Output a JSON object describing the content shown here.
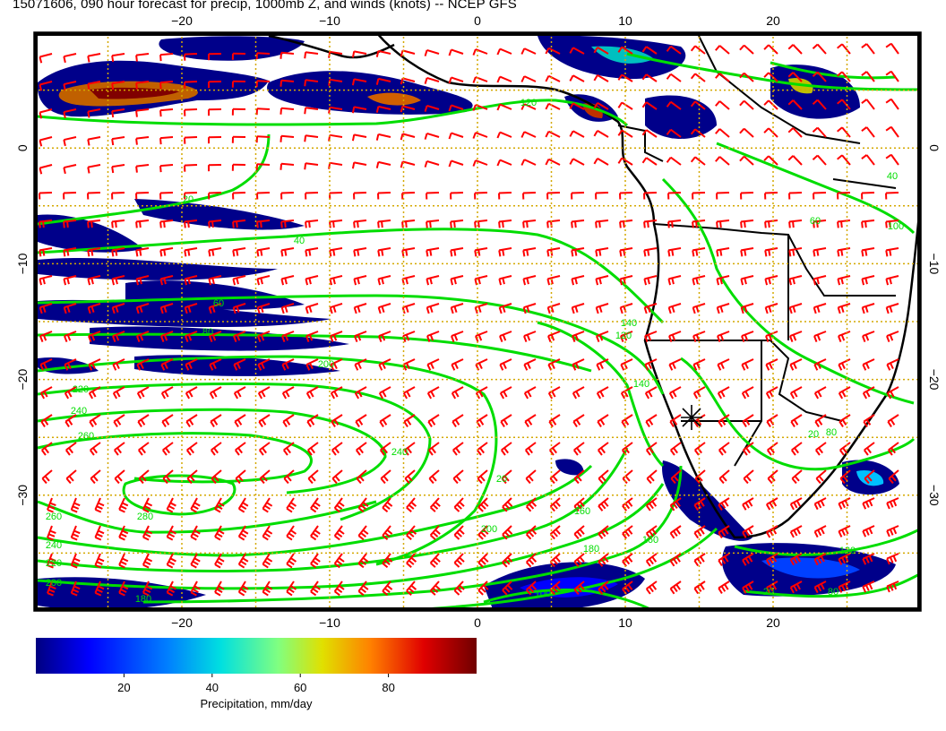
{
  "title": "15071606, 090 hour forecast for precip, 1000mb Z, and winds (knots) -- NCEP GFS",
  "map": {
    "lon_range": [
      -30,
      30
    ],
    "lat_range": [
      -40,
      10
    ],
    "lon_ticks": [
      -20,
      -10,
      0,
      10,
      20
    ],
    "lat_ticks": [
      0,
      -10,
      -20,
      -30
    ],
    "lon_tick_labels": [
      "−20",
      "−10",
      "0",
      "10",
      "20"
    ],
    "lat_tick_labels": [
      "0",
      "−10",
      "−20",
      "−30"
    ],
    "grid": "dotted-gold",
    "colors": {
      "contour": "#00dd00",
      "barb": "#ff0000",
      "coast": "#000000",
      "grid": "#d4a800"
    },
    "marker": {
      "symbol": "asterisk",
      "lon": 15,
      "lat": -23
    }
  },
  "contours": {
    "labels": [
      "120",
      "20",
      "40",
      "60",
      "80",
      "200",
      "220",
      "240",
      "260",
      "240",
      "280",
      "260",
      "240",
      "220",
      "200",
      "180",
      "160",
      "140",
      "160",
      "180",
      "200",
      "140",
      "120",
      "100",
      "80",
      "60",
      "40",
      "20",
      "20",
      "20",
      "120",
      "80",
      "100"
    ]
  },
  "colorbar": {
    "label": "Precipitation, mm/day",
    "ticks": [
      "20",
      "40",
      "60",
      "80"
    ],
    "tick_values": [
      20,
      40,
      60,
      80
    ],
    "range": [
      0,
      100
    ]
  }
}
